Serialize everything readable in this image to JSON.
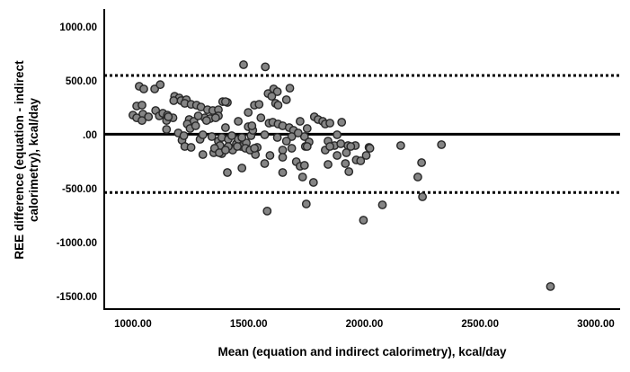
{
  "chart_data": {
    "type": "scatter",
    "title": "",
    "xlabel": "Mean (equation and indirect calorimetry), kcal/day",
    "ylabel_line1": "REE difference (equation - indirect",
    "ylabel_line2": "calorimetry), kcal/day",
    "units": "kcal/day",
    "grid": false,
    "legend": null,
    "xlim": [
      876,
      3105
    ],
    "ylim": [
      -1617,
      1167
    ],
    "x_ticks": [
      {
        "value": 1000,
        "label": "1000.00"
      },
      {
        "value": 1500,
        "label": "1500.00"
      },
      {
        "value": 2000,
        "label": "2000.00"
      },
      {
        "value": 2500,
        "label": "2500.00"
      },
      {
        "value": 3000,
        "label": "3000.00"
      }
    ],
    "y_ticks": [
      {
        "value": 1000,
        "label": "1000.00"
      },
      {
        "value": 500,
        "label": "500.00"
      },
      {
        "value": 0,
        "label": ".00"
      },
      {
        "value": -500,
        "label": "-500.00"
      },
      {
        "value": -1000,
        "label": "-1000.00"
      },
      {
        "value": -1500,
        "label": "-1500.00"
      }
    ],
    "reference_lines": {
      "mean": {
        "value": 5,
        "style": "solid",
        "color": "#000000"
      },
      "upper_loa": {
        "value": 550,
        "style": "dotted",
        "color": "#000000"
      },
      "lower_loa": {
        "value": -535,
        "style": "dotted",
        "color": "#000000"
      }
    },
    "marker": {
      "shape": "circle",
      "radius": 4.2,
      "fill": "#858585",
      "stroke": "#262626"
    },
    "colors": {
      "axis": "#000000",
      "background": "#ffffff"
    },
    "points": [
      [
        1027,
        450
      ],
      [
        1047,
        425
      ],
      [
        1094,
        425
      ],
      [
        1118,
        465
      ],
      [
        1180,
        358
      ],
      [
        1200,
        342
      ],
      [
        1016,
        267
      ],
      [
        1039,
        275
      ],
      [
        1000,
        183
      ],
      [
        1043,
        192
      ],
      [
        1098,
        225
      ],
      [
        1114,
        175
      ],
      [
        1129,
        200
      ],
      [
        1149,
        183
      ],
      [
        1145,
        133
      ],
      [
        1173,
        158
      ],
      [
        1176,
        317
      ],
      [
        1208,
        317
      ],
      [
        1231,
        325
      ],
      [
        1224,
        292
      ],
      [
        1251,
        283
      ],
      [
        1275,
        275
      ],
      [
        1294,
        258
      ],
      [
        1322,
        233
      ],
      [
        1345,
        225
      ],
      [
        1369,
        233
      ],
      [
        1388,
        308
      ],
      [
        1408,
        300
      ],
      [
        1153,
        167
      ],
      [
        1243,
        142
      ],
      [
        1263,
        125
      ],
      [
        1310,
        158
      ],
      [
        1333,
        150
      ],
      [
        1369,
        175
      ],
      [
        1016,
        158
      ],
      [
        1039,
        133
      ],
      [
        1067,
        167
      ],
      [
        1145,
        50
      ],
      [
        1196,
        17
      ],
      [
        1212,
        -50
      ],
      [
        1220,
        -8
      ],
      [
        1235,
        100
      ],
      [
        1247,
        58
      ],
      [
        1271,
        83
      ],
      [
        1282,
        175
      ],
      [
        1290,
        -42
      ],
      [
        1302,
        0
      ],
      [
        1318,
        133
      ],
      [
        1341,
        -17
      ],
      [
        1357,
        158
      ],
      [
        1369,
        -58
      ],
      [
        1376,
        -100
      ],
      [
        1384,
        -25
      ],
      [
        1400,
        67
      ],
      [
        1412,
        -42
      ],
      [
        1431,
        -142
      ],
      [
        1447,
        -83
      ],
      [
        1455,
        -42
      ],
      [
        1467,
        -108
      ],
      [
        1490,
        -75
      ],
      [
        1498,
        75
      ],
      [
        1510,
        -8
      ],
      [
        1518,
        42
      ],
      [
        1529,
        -183
      ],
      [
        1537,
        -117
      ],
      [
        1384,
        -175
      ],
      [
        1349,
        -167
      ],
      [
        1478,
        650
      ],
      [
        1572,
        630
      ],
      [
        1400,
        308
      ],
      [
        1584,
        383
      ],
      [
        1608,
        425
      ],
      [
        1624,
        400
      ],
      [
        1600,
        358
      ],
      [
        1678,
        433
      ],
      [
        1616,
        292
      ],
      [
        1627,
        275
      ],
      [
        1663,
        325
      ],
      [
        1525,
        275
      ],
      [
        1545,
        283
      ],
      [
        1498,
        208
      ],
      [
        1514,
        83
      ],
      [
        1553,
        158
      ],
      [
        1455,
        125
      ],
      [
        1427,
        -8
      ],
      [
        1471,
        -25
      ],
      [
        1588,
        108
      ],
      [
        1604,
        117
      ],
      [
        1627,
        100
      ],
      [
        1647,
        83
      ],
      [
        1675,
        67
      ],
      [
        1694,
        42
      ],
      [
        1722,
        125
      ],
      [
        1753,
        58
      ],
      [
        1784,
        167
      ],
      [
        1800,
        142
      ],
      [
        1820,
        125
      ],
      [
        1831,
        100
      ],
      [
        1851,
        108
      ],
      [
        1902,
        117
      ],
      [
        1569,
        0
      ],
      [
        1624,
        -25
      ],
      [
        1686,
        -17
      ],
      [
        1741,
        -17
      ],
      [
        1882,
        0
      ],
      [
        1663,
        -58
      ],
      [
        1647,
        -142
      ],
      [
        1686,
        -125
      ],
      [
        1714,
        17
      ],
      [
        1761,
        -67
      ],
      [
        1745,
        -108
      ],
      [
        1843,
        -58
      ],
      [
        1871,
        -100
      ],
      [
        1898,
        -83
      ],
      [
        1929,
        -100
      ],
      [
        1961,
        -100
      ],
      [
        1831,
        -142
      ],
      [
        1412,
        -108
      ],
      [
        1451,
        -108
      ],
      [
        1486,
        -125
      ],
      [
        1506,
        -142
      ],
      [
        1525,
        -125
      ],
      [
        1569,
        -267
      ],
      [
        1592,
        -192
      ],
      [
        1647,
        -208
      ],
      [
        1706,
        -250
      ],
      [
        1722,
        -292
      ],
      [
        1741,
        -283
      ],
      [
        1753,
        -108
      ],
      [
        1647,
        -350
      ],
      [
        1733,
        -392
      ],
      [
        1780,
        -442
      ],
      [
        1471,
        -308
      ],
      [
        1408,
        -350
      ],
      [
        1851,
        -108
      ],
      [
        1882,
        -192
      ],
      [
        1843,
        -275
      ],
      [
        1918,
        -267
      ],
      [
        1922,
        -167
      ],
      [
        1224,
        -108
      ],
      [
        1251,
        -117
      ],
      [
        1302,
        -183
      ],
      [
        1353,
        -125
      ],
      [
        1373,
        -167
      ],
      [
        1400,
        -142
      ],
      [
        1941,
        -108
      ],
      [
        2020,
        -117
      ],
      [
        2157,
        -100
      ],
      [
        2333,
        -92
      ],
      [
        1965,
        -233
      ],
      [
        1984,
        -242
      ],
      [
        2008,
        -192
      ],
      [
        2024,
        -125
      ],
      [
        1933,
        -342
      ],
      [
        2247,
        -258
      ],
      [
        2231,
        -392
      ],
      [
        2251,
        -575
      ],
      [
        2078,
        -650
      ],
      [
        1996,
        -792
      ],
      [
        1580,
        -708
      ],
      [
        1749,
        -642
      ],
      [
        2804,
        -1408
      ]
    ]
  }
}
